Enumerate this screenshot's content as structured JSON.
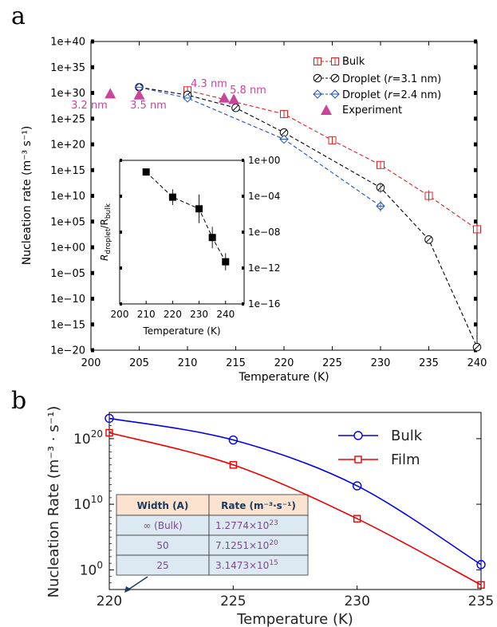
{
  "panel_a_label": "a",
  "panel_b_label": "b",
  "colors": {
    "bulk": "#e02020",
    "droplet31": "#000000",
    "droplet24": "#2050c0",
    "experiment": "#cc4499",
    "b_bulk": "#0000ee",
    "b_film": "#ee0000",
    "table_header": "#fbe3cf",
    "table_cell": "#dce9f2"
  },
  "chart_data": [
    {
      "type": "line",
      "xlabel": "Temperature (K)",
      "ylabel": "Nucleation rate (m⁻³ s⁻¹)",
      "xlim": [
        200,
        240
      ],
      "ylim_log10": [
        -20,
        40
      ],
      "y_scale": "log",
      "x_ticks": [
        "200",
        "205",
        "210",
        "215",
        "220",
        "225",
        "230",
        "235",
        "240"
      ],
      "y_ticks": [
        "1e+40",
        "1e+35",
        "1e+30",
        "1e+25",
        "1e+20",
        "1e+15",
        "1e+10",
        "1e+05",
        "1e+00",
        "1e−05",
        "1e−10",
        "1e−15",
        "1e−20"
      ],
      "legend_position": "top-right",
      "series": [
        {
          "name": "Bulk",
          "x": [
            210,
            220,
            225,
            230,
            235,
            240
          ],
          "log10_y": [
            30.5,
            25.9,
            20.8,
            16.0,
            10.0,
            3.5
          ]
        },
        {
          "name": "Droplet (r=3.1 nm)",
          "x": [
            205,
            210,
            215,
            220,
            230,
            235,
            240
          ],
          "log10_y": [
            31.1,
            29.6,
            27.1,
            22.3,
            11.6,
            1.5,
            -19.4
          ]
        },
        {
          "name": "Droplet (r=2.4 nm)",
          "x": [
            205,
            210,
            220,
            230
          ],
          "log10_y": [
            31.1,
            29.0,
            21.0,
            8.0
          ]
        },
        {
          "name": "Experiment",
          "x": [
            202,
            205,
            213.8,
            214.8
          ],
          "log10_y": [
            29.7,
            29.5,
            28.9,
            28.6
          ]
        }
      ],
      "annotations": [
        "3.2 nm",
        "3.5 nm",
        "4.3 nm",
        "5.8 nm"
      ],
      "inset": {
        "xlabel": "Temperature (K)",
        "ylabel_main": "R",
        "ylabel_sub1": "droplet",
        "ylabel_mid": "/R",
        "ylabel_sub2": "bulk",
        "xlim": [
          200,
          247
        ],
        "ylim_log10": [
          -16,
          0
        ],
        "y_scale": "log",
        "x_ticks": [
          "200",
          "210",
          "220",
          "230",
          "240"
        ],
        "y_ticks": [
          "1e+00",
          "1e−04",
          "1e−08",
          "1e−12",
          "1e−16"
        ],
        "points": {
          "x": [
            210,
            220,
            230,
            235,
            240
          ],
          "log10_y": [
            -1.3,
            -4.1,
            -5.4,
            -8.6,
            -11.3
          ]
        }
      }
    },
    {
      "type": "line",
      "xlabel": "Temperature (K)",
      "ylabel": "Nucleation Rate (m⁻³ · s⁻¹)",
      "xlim": [
        220,
        235
      ],
      "ylim_log10": [
        -3,
        24
      ],
      "y_scale": "log",
      "x_ticks": [
        "220",
        "225",
        "230",
        "235"
      ],
      "y_ticks": [
        {
          "base": "10",
          "exp": "20"
        },
        {
          "base": "10",
          "exp": "10"
        },
        {
          "base": "10",
          "exp": "0"
        }
      ],
      "legend_position": "top-right",
      "series": [
        {
          "name": "Bulk",
          "x": [
            220,
            225,
            230,
            235
          ],
          "log10_y": [
            23.1,
            19.8,
            12.8,
            0.8
          ]
        },
        {
          "name": "Film",
          "x": [
            220,
            225,
            230,
            235
          ],
          "log10_y": [
            20.9,
            16.0,
            7.8,
            -2.3
          ]
        }
      ],
      "table": {
        "headers": [
          "Width (A)",
          "Rate (m⁻³·s⁻¹)"
        ],
        "rows": [
          {
            "width": "∞ (Bulk)",
            "mant": "1.2774×10",
            "exp": "23"
          },
          {
            "width": "50",
            "mant": "7.1251×10",
            "exp": "20"
          },
          {
            "width": "25",
            "mant": "3.1473×10",
            "exp": "15"
          }
        ]
      }
    }
  ]
}
